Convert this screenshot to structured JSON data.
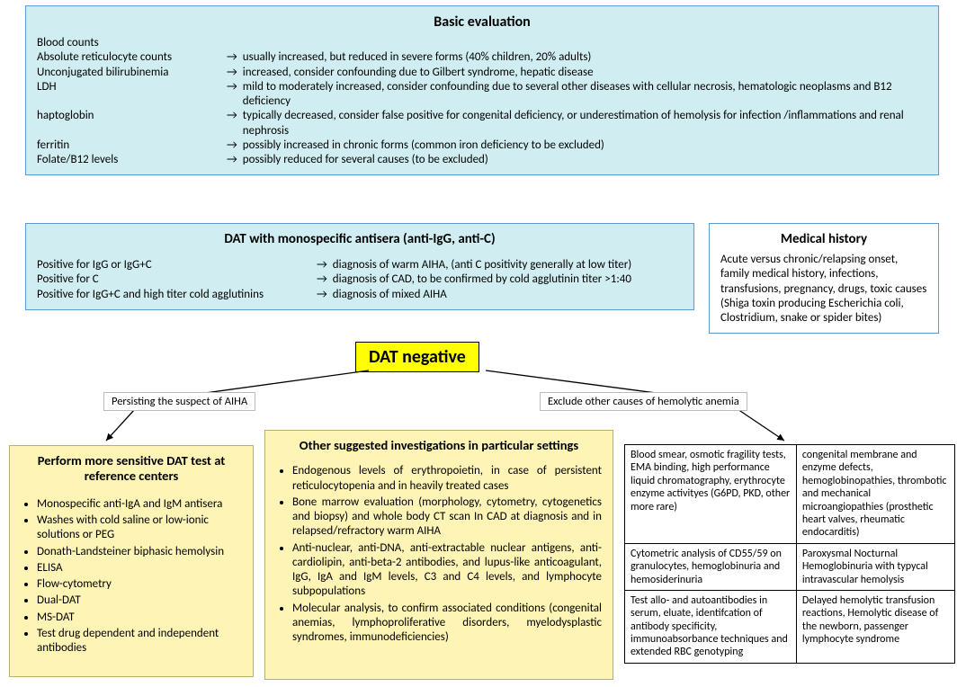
{
  "colors": {
    "blue_fill": "#d0eef2",
    "blue_border": "#5b9bd5",
    "yellow_fill": "#fdf4b6",
    "yellow_border": "#b8b06a",
    "highlight": "#ffff00",
    "text": "#000000"
  },
  "basic_eval": {
    "title": "Basic evaluation",
    "rows": [
      {
        "label": "Blood counts",
        "desc": ""
      },
      {
        "label": "Absolute reticulocyte counts",
        "desc": "usually increased, but reduced in severe forms (40% children, 20% adults)"
      },
      {
        "label": "Unconjugated bilirubinemia",
        "desc": "increased, consider confounding due to  Gilbert syndrome, hepatic disease"
      },
      {
        "label": "LDH",
        "desc": "mild to moderately increased, consider confounding due to several other diseases  with  cellular necrosis,  hematologic neoplasms and B12 deficiency"
      },
      {
        "label": "haptoglobin",
        "desc": "typically decreased, consider false positive for congenital deficiency, or underestimation of hemolysis for infection /inflammations and renal nephrosis"
      },
      {
        "label": "ferritin",
        "desc": "possibly increased in chronic forms (common iron deficiency to be excluded)"
      },
      {
        "label": "Folate/B12 levels",
        "desc": "possibly reduced for several causes  (to be excluded)"
      }
    ]
  },
  "dat_mono": {
    "title": "DAT with monospecific antisera (anti-IgG, anti-C)",
    "rows": [
      {
        "label": "Positive for IgG or IgG+C",
        "desc": "diagnosis of warm AIHA, (anti C positivity generally at low titer)"
      },
      {
        "label": "Positive for C",
        "desc": "diagnosis of CAD, to be confirmed by cold agglutinin titer >1:40"
      },
      {
        "label": "Positive for IgG+C and high titer cold agglutinins",
        "desc": "diagnosis of mixed AIHA"
      }
    ]
  },
  "med_history": {
    "title": "Medical history",
    "text": "Acute versus chronic/relapsing onset, family medical history, infections, transfusions, pregnancy, drugs, toxic causes (Shiga toxin producing Escherichia coli, Clostridium, snake or spider bites)"
  },
  "dat_negative": "DAT negative",
  "branch_left": "Persisting the suspect of AIHA",
  "branch_right": "Exclude other causes of hemolytic anemia",
  "sensitive_dat": {
    "title": "Perform more sensitive DAT test at reference centers",
    "items": [
      "Monospecific anti-IgA and IgM antisera",
      "Washes with cold saline or low-ionic solutions or PEG",
      "Donath-Landsteiner biphasic hemolysin",
      "ELISA",
      "Flow-cytometry",
      "Dual-DAT",
      "MS-DAT",
      "Test drug dependent and independent antibodies"
    ]
  },
  "other_inv": {
    "title": "Other suggested investigations in particular settings",
    "items": [
      "Endogenous levels of erythropoietin, in case of persistent reticulocytopenia and in heavily treated cases",
      "Bone marrow evaluation (morphology, cytometry, cytogenetics and biopsy) and whole body CT scan In CAD at diagnosis and in relapsed/refractory warm AIHA",
      "Anti-nuclear, anti-DNA, anti-extractable nuclear antigens, anti-cardiolipin, anti-beta-2 antibodies, and lupus-like anticoagulant, IgG, IgA and IgM levels, C3 and C4 levels, and lymphocyte subpopulations",
      "Molecular analysis, to confirm associated conditions (congenital anemias, lymphoproliferative disorders, myelodysplastic syndromes, immunodeficiencies)"
    ]
  },
  "exclude_table": {
    "rows": [
      {
        "l": "Blood smear, osmotic fragility tests, EMA binding, high performance liquid chromatography, erythrocyte enzyme activityes (G6PD, PKD, other more rare)",
        "r": "congenital membrane  and enzyme defects, hemoglobinopathies, thrombotic and mechanical microangiopathies (prosthetic heart valves, rheumatic endocarditis)"
      },
      {
        "l": "Cytometric analysis of CD55/59 on granulocytes, hemoglobinuria and hemosiderinuria",
        "r": "Paroxysmal  Nocturnal Hemoglobinuria with typycal intravascular hemolysis"
      },
      {
        "l": "Test allo- and autoantibodies in serum, eluate, identifcation of antibody specificity, immunoabsorbance techniques and extended RBC genotyping",
        "r": "Delayed hemolytic transfusion reactions, Hemolytic disease of the newborn, passenger lymphocyte syndrome"
      }
    ]
  }
}
